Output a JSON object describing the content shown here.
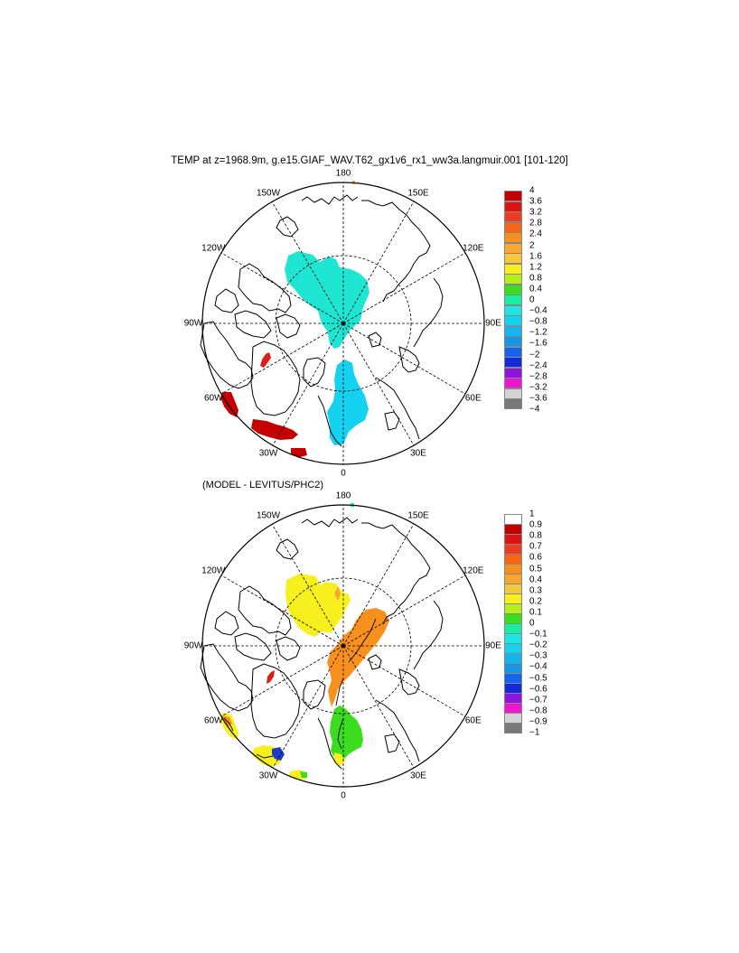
{
  "title": "TEMP at z=1968.9m, g.e15.GIAF_WAV.T62_gx1v6_rx1_ww3a.langmuir.001 [101-120]",
  "subtitle": "(MODEL - LEVITUS/PHC2)",
  "lon_labels": [
    {
      "text": "180",
      "deg": 180
    },
    {
      "text": "150W",
      "deg": -150
    },
    {
      "text": "120W",
      "deg": -120
    },
    {
      "text": "90W",
      "deg": -90
    },
    {
      "text": "60W",
      "deg": -60
    },
    {
      "text": "30W",
      "deg": -30
    },
    {
      "text": "0",
      "deg": 0
    },
    {
      "text": "30E",
      "deg": 30
    },
    {
      "text": "60E",
      "deg": 60
    },
    {
      "text": "90E",
      "deg": 90
    },
    {
      "text": "120E",
      "deg": 120
    },
    {
      "text": "150E",
      "deg": 150
    }
  ],
  "colorbar_top": {
    "labels": [
      "4",
      "3.6",
      "3.2",
      "2.8",
      "2.4",
      "2",
      "1.6",
      "1.2",
      "0.8",
      "0.4",
      "0",
      "−0.4",
      "−0.8",
      "−1.2",
      "−1.6",
      "−2",
      "−2.4",
      "−2.8",
      "−3.2",
      "−3.6",
      "−4"
    ],
    "colors": [
      "#c40000",
      "#dc1414",
      "#f03c1e",
      "#f86414",
      "#f8901e",
      "#f8a832",
      "#f8c83c",
      "#f8f01e",
      "#b4f01e",
      "#3cdc1e",
      "#14f0a0",
      "#1ee6e6",
      "#14d2f0",
      "#14b4f0",
      "#1496e6",
      "#1464f0",
      "#1428dc",
      "#8c14dc",
      "#f014d2",
      "#d2d2d2",
      "#787878"
    ]
  },
  "colorbar_bottom": {
    "labels": [
      "1",
      "0.9",
      "0.8",
      "0.7",
      "0.6",
      "0.5",
      "0.4",
      "0.3",
      "0.2",
      "0.1",
      "0",
      "−0.1",
      "−0.2",
      "−0.3",
      "−0.4",
      "−0.5",
      "−0.6",
      "−0.7",
      "−0.8",
      "−0.9",
      "−1"
    ],
    "colors": [
      "#ffffff",
      "#c40000",
      "#dc1414",
      "#f03c1e",
      "#f86414",
      "#f8901e",
      "#f8a832",
      "#f8c83c",
      "#f8f01e",
      "#b4f01e",
      "#3cdc1e",
      "#14f0a0",
      "#1ee6e6",
      "#14d2f0",
      "#14b4f0",
      "#1496e6",
      "#1464f0",
      "#1428dc",
      "#8c14dc",
      "#f014d2",
      "#d2d2d2",
      "#787878"
    ]
  }
}
